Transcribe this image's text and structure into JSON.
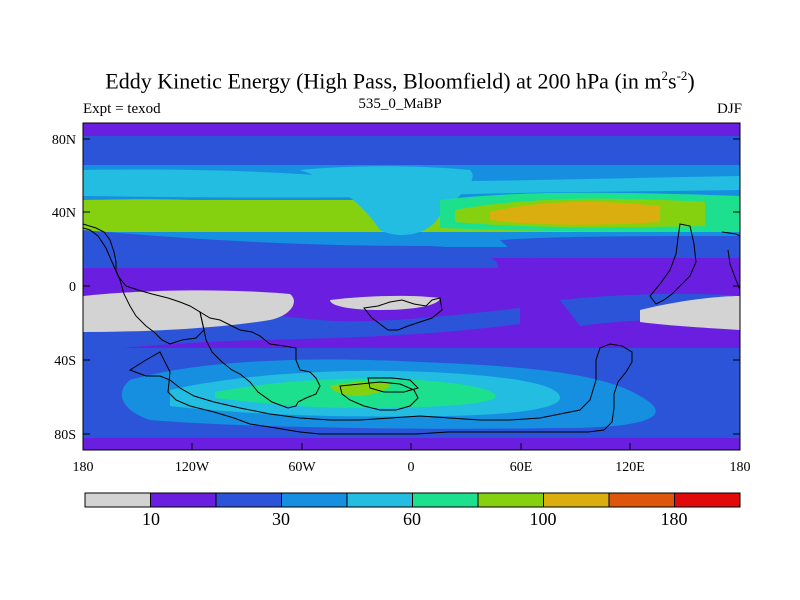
{
  "title": {
    "prefix": "Eddy Kinetic Energy (High Pass, Bloomfield) at 200 hPa (in m",
    "sup1": "2",
    "mid": "s",
    "sup2": "-2",
    "suffix": ")"
  },
  "subtitle_left": "Expt = texod",
  "subtitle_center": "535_0_MaBP",
  "subtitle_right": "DJF",
  "y_ticks": [
    "80N",
    "40N",
    "0",
    "40S",
    "80S"
  ],
  "x_ticks": [
    "180",
    "120W",
    "60W",
    "0",
    "60E",
    "120E",
    "180"
  ],
  "colorbar": {
    "colors": [
      "#d3d3d3",
      "#6a1fe0",
      "#2b54d8",
      "#168fe0",
      "#22bde0",
      "#1de08e",
      "#86d10f",
      "#dbae0f",
      "#dc560c",
      "#e00a0a"
    ],
    "labels": [
      "10",
      "30",
      "60",
      "100",
      "180"
    ]
  }
}
